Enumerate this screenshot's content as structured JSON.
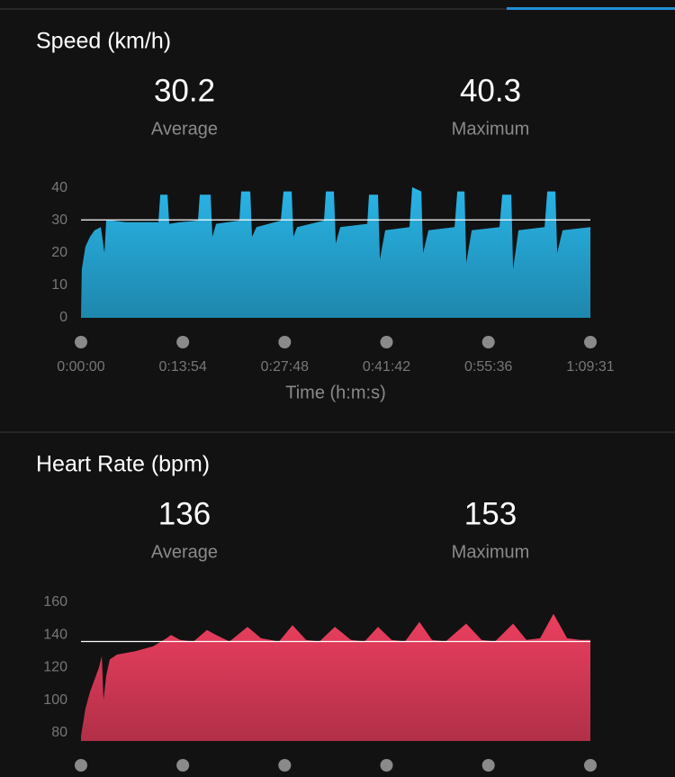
{
  "chart_data": [
    {
      "type": "area",
      "title": "Speed (km/h)",
      "stat_labels": [
        "Average",
        "Maximum"
      ],
      "average": 30.2,
      "maximum": 40.3,
      "color": "#29b4e6",
      "xlabel": "Time (h:m:s)",
      "x": [
        0,
        7,
        37,
        74,
        111,
        162,
        192,
        206,
        258,
        369,
        516,
        634,
        649,
        708,
        722,
        811,
        958,
        973,
        1061,
        1076,
        1106,
        1297,
        1312,
        1386,
        1400,
        1437,
        1636,
        1658,
        1725,
        1739,
        1769,
        1990,
        2005,
        2071,
        2086,
        2123,
        2344,
        2358,
        2432,
        2447,
        2491,
        2690,
        2712,
        2786,
        2801,
        2845,
        3059,
        3081,
        3140,
        3155,
        3199,
        3427,
        3449,
        3523,
        3538,
        3582,
        3796,
        3818,
        3884,
        3899,
        3943,
        4171
      ],
      "values": [
        0,
        15,
        22,
        25,
        27,
        28,
        20,
        30,
        30,
        29.5,
        29.5,
        29.5,
        38,
        38,
        29,
        29.5,
        30,
        38,
        38,
        25,
        29,
        30,
        39,
        39,
        25,
        28,
        30,
        39,
        39,
        25,
        28,
        30,
        39,
        39,
        23,
        28,
        29,
        38,
        38,
        18,
        27,
        28,
        40.3,
        39,
        20,
        27,
        28,
        39,
        39,
        17,
        27,
        28,
        38,
        38,
        15,
        27,
        28,
        39,
        39,
        20,
        27,
        28
      ],
      "xlim": [
        0,
        4171
      ],
      "xticks": [
        {
          "value": 0,
          "label": "0:00:00"
        },
        {
          "value": 834,
          "label": "0:13:54"
        },
        {
          "value": 1668,
          "label": "0:27:48"
        },
        {
          "value": 2502,
          "label": "0:41:42"
        },
        {
          "value": 3336,
          "label": "0:55:36"
        },
        {
          "value": 4171,
          "label": "1:09:31"
        }
      ],
      "ylim": [
        0,
        40
      ],
      "yticks": [
        0,
        10,
        20,
        30,
        40
      ]
    },
    {
      "type": "area",
      "title": "Heart Rate (bpm)",
      "stat_labels": [
        "Average",
        "Maximum"
      ],
      "average": 136,
      "maximum": 153,
      "color": "#ec3f5f",
      "x": [
        0,
        37,
        74,
        147,
        170,
        184,
        206,
        236,
        295,
        442,
        590,
        700,
        737,
        811,
        921,
        1032,
        1106,
        1216,
        1363,
        1474,
        1621,
        1732,
        1843,
        1953,
        2078,
        2211,
        2322,
        2432,
        2543,
        2653,
        2771,
        2874,
        2985,
        3154,
        3280,
        3390,
        3538,
        3648,
        3759,
        3869,
        3980,
        4090,
        4171
      ],
      "values": [
        78,
        95,
        105,
        120,
        127,
        100,
        115,
        125,
        128,
        130,
        133,
        138,
        140,
        137,
        136,
        143,
        140,
        136,
        145,
        138,
        136,
        146,
        137,
        136,
        145,
        137,
        136,
        145,
        137,
        136,
        148,
        137,
        136,
        147,
        137,
        136,
        147,
        137,
        138,
        153,
        138,
        137,
        137
      ],
      "xlim": [
        0,
        4171
      ],
      "xticks": [
        0,
        834,
        1668,
        2502,
        3336,
        4171
      ],
      "ylim": [
        75,
        160
      ],
      "yticks": [
        80,
        100,
        120,
        140,
        160
      ]
    }
  ]
}
